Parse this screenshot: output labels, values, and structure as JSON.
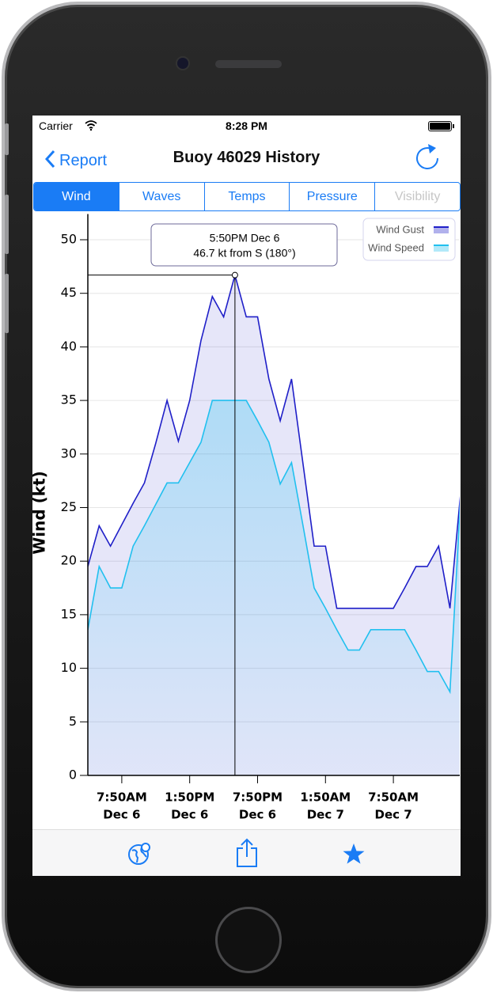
{
  "status_bar": {
    "carrier": "Carrier",
    "time": "8:28 PM"
  },
  "nav": {
    "back": "Report",
    "title": "Buoy 46029 History"
  },
  "tabs": [
    "Wind",
    "Waves",
    "Temps",
    "Pressure",
    "Visibility"
  ],
  "chart_data": {
    "type": "area",
    "y_label": "Wind (kt)",
    "categories": [
      null,
      null,
      null,
      [
        "7:50AM",
        "Dec 6"
      ],
      null,
      null,
      null,
      null,
      null,
      [
        "1:50PM",
        "Dec 6"
      ],
      null,
      null,
      null,
      null,
      null,
      [
        "7:50PM",
        "Dec 6"
      ],
      null,
      null,
      null,
      null,
      null,
      [
        "1:50AM",
        "Dec 7"
      ],
      null,
      null,
      null,
      null,
      null,
      [
        "7:50AM",
        "Dec 7"
      ],
      null,
      null,
      null,
      null,
      null,
      null
    ],
    "series": [
      {
        "name": "Wind Gust",
        "color": "#1f1fc8",
        "values": [
          19.5,
          23.3,
          21.4,
          23.4,
          25.4,
          27.3,
          31,
          35,
          31.2,
          35,
          40.6,
          44.7,
          42.8,
          46.7,
          42.8,
          42.8,
          37,
          33.1,
          37,
          29.2,
          21.4,
          21.4,
          15.6,
          15.6,
          15.6,
          15.6,
          15.6,
          15.6,
          17.5,
          19.5,
          19.5,
          21.4,
          15.6,
          27
        ]
      },
      {
        "name": "Wind Speed",
        "color": "#21c0ef",
        "values": [
          13.6,
          19.5,
          17.5,
          17.5,
          21.4,
          23.3,
          25.3,
          27.3,
          27.3,
          29.2,
          31.1,
          35,
          35,
          35,
          35,
          33.1,
          31.1,
          27.2,
          29.2,
          23.4,
          17.5,
          15.6,
          13.6,
          11.7,
          11.7,
          13.6,
          13.6,
          13.6,
          13.6,
          11.7,
          9.7,
          9.7,
          7.8,
          27
        ]
      }
    ],
    "ylim": [
      0,
      52.4
    ],
    "yticks": [
      0,
      5,
      10,
      15,
      20,
      25,
      30,
      35,
      40,
      45,
      50
    ],
    "grid": true,
    "legend": "top-right",
    "tooltip": [
      "5:50PM Dec 6",
      "46.7 kt from S (180°)"
    ]
  }
}
